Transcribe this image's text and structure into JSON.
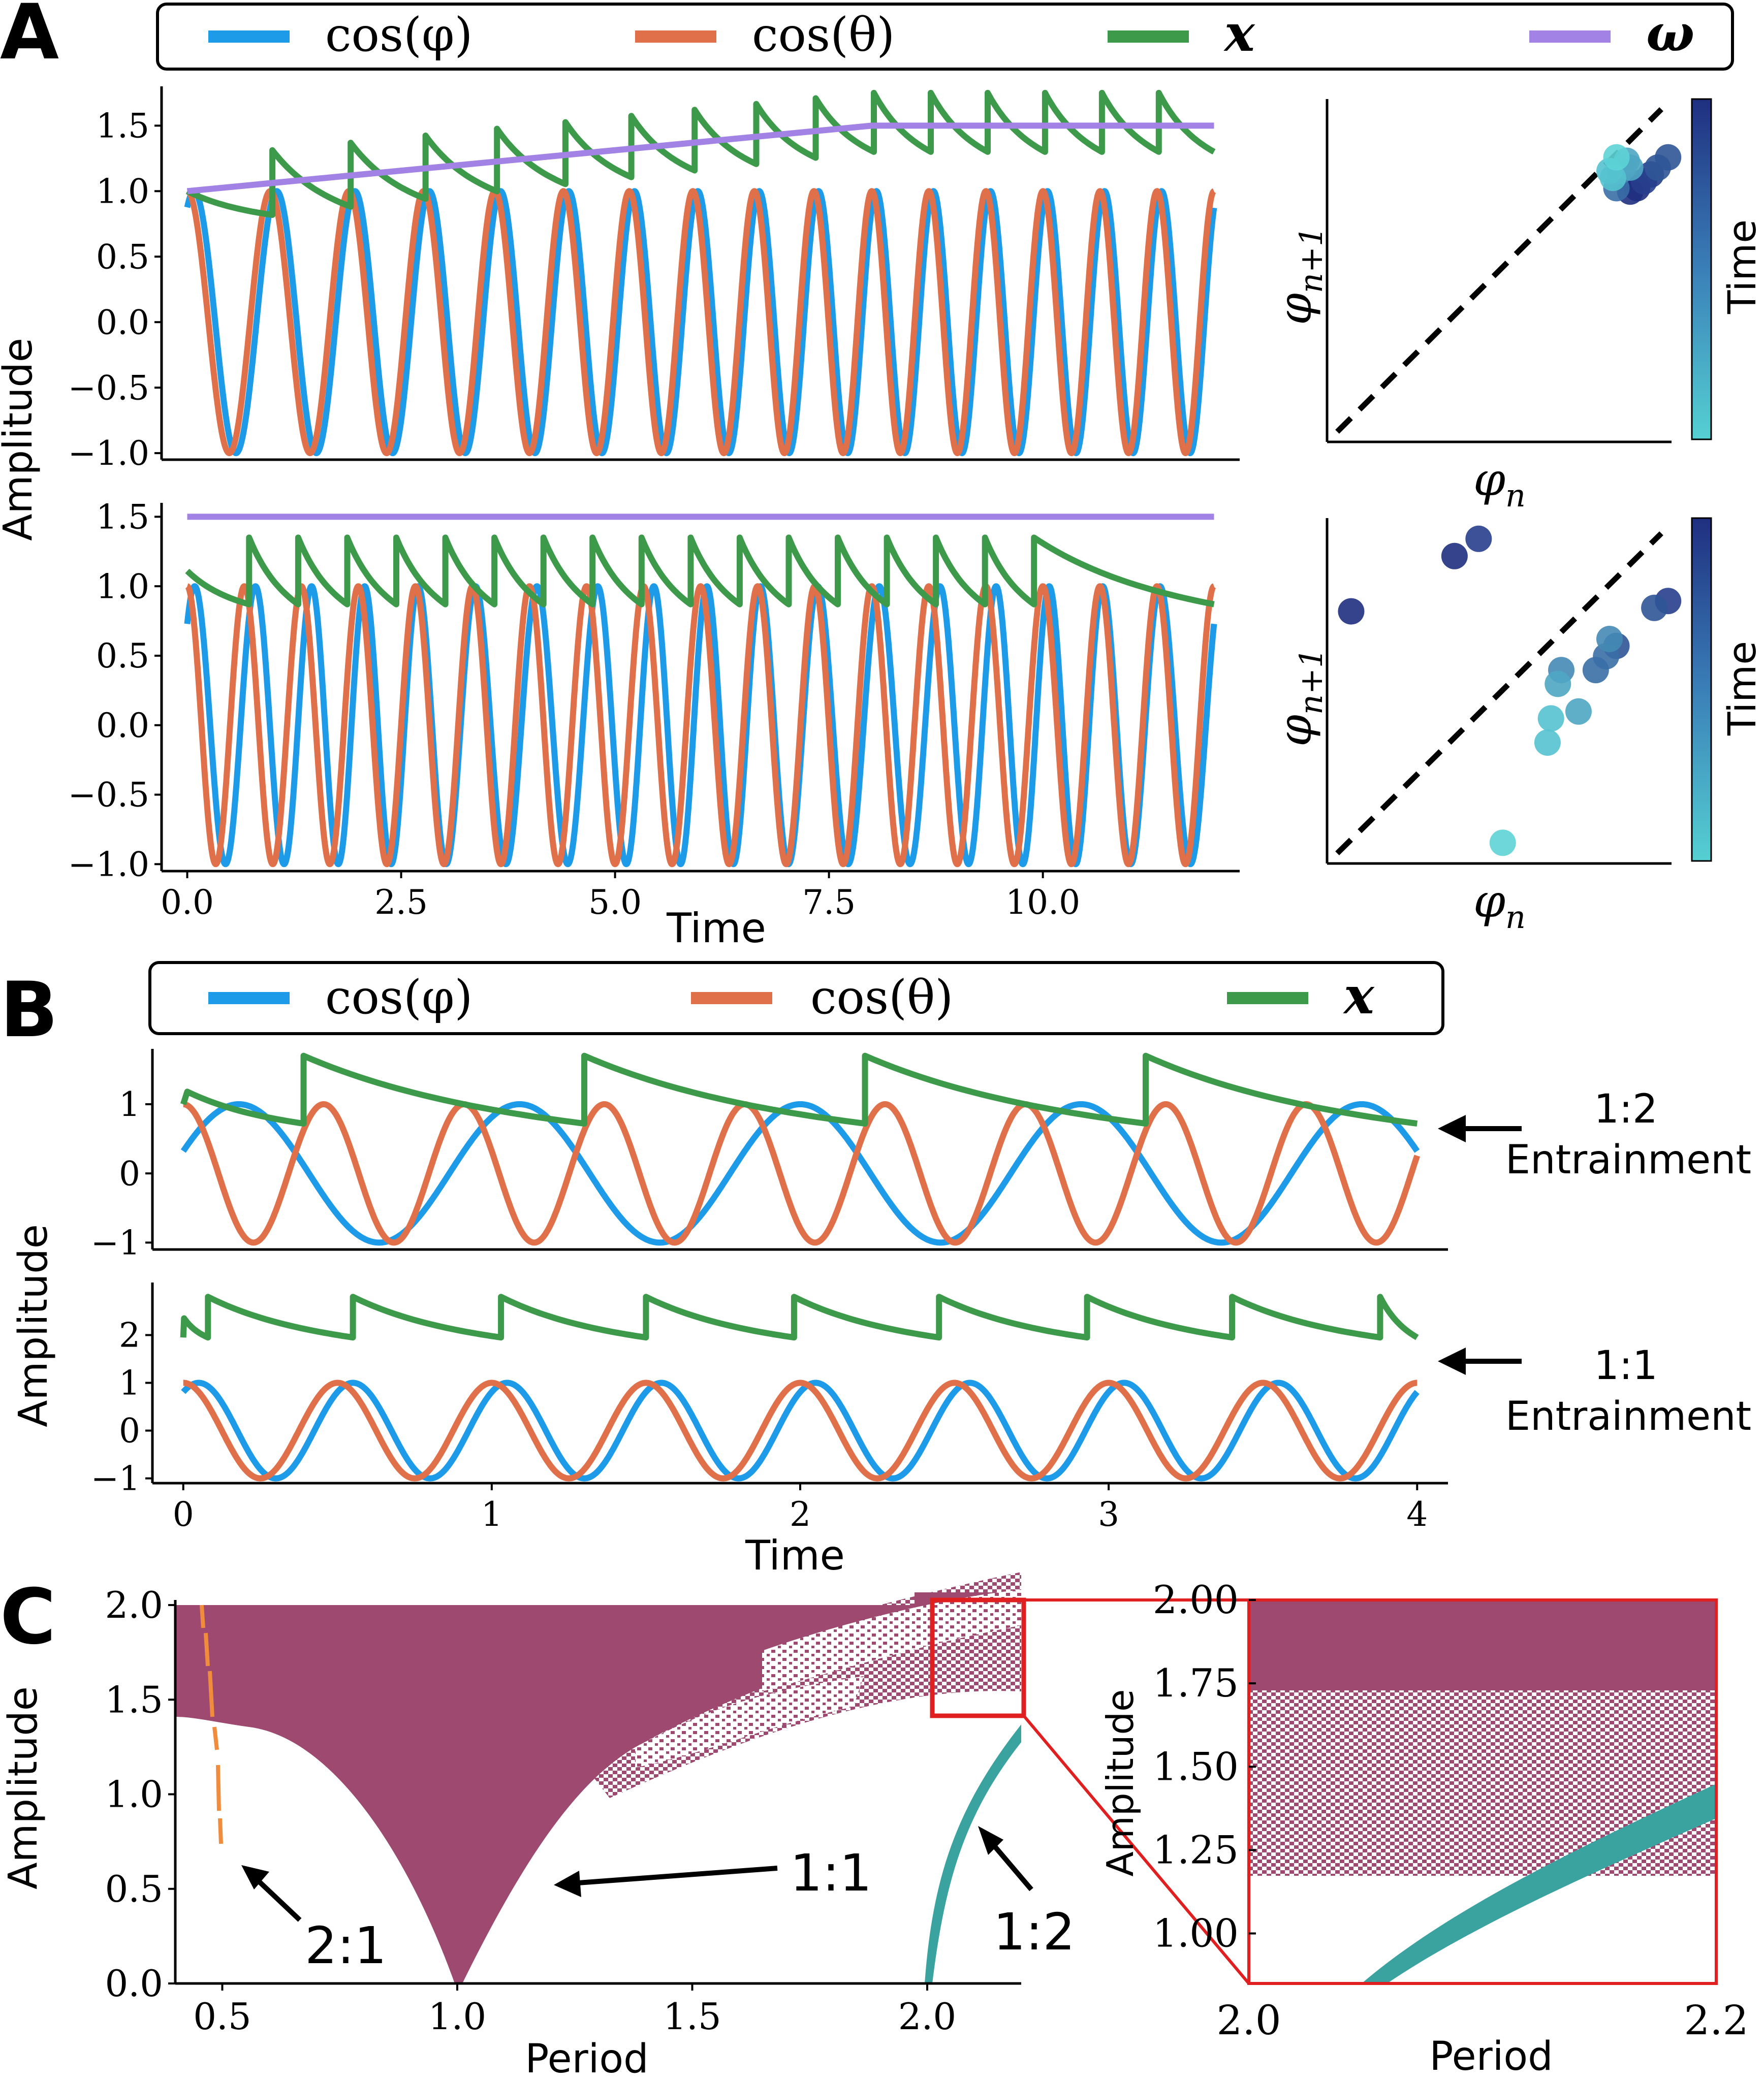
{
  "panels": {
    "A": {
      "label": "A",
      "legend": [
        "cos(φ)",
        "cos(θ)",
        "x",
        "ω"
      ],
      "ylabel": "Amplitude",
      "xlabel": "Time",
      "map_xlabel": "φ",
      "map_xlabel_sub": "n",
      "map_ylabel": "φ",
      "map_ylabel_sub": "n+1",
      "colorbar_label": "Time"
    },
    "B": {
      "label": "B",
      "legend": [
        "cos(φ)",
        "cos(θ)",
        "x"
      ],
      "ylabel": "Amplitude",
      "xlabel": "Time",
      "annotations": [
        {
          "ratio": "1:2",
          "text": "Entrainment"
        },
        {
          "ratio": "1:1",
          "text": "Entrainment"
        }
      ]
    },
    "C": {
      "label": "C",
      "ylabel": "Amplitude",
      "xlabel": "Period",
      "inset_ylabel": "Amplitude",
      "inset_xlabel": "Period",
      "annotations": [
        "2:1",
        "1:1",
        "1:2"
      ]
    }
  },
  "colors": {
    "cos_phi": "#1e9be8",
    "cos_theta": "#e0704a",
    "x": "#3d9a4a",
    "omega": "#a282e4",
    "region_1_1": "#9e4a70",
    "region_1_2": "#3aa39f",
    "region_2_1": "#f08c3c",
    "zoom_box": "#e02020"
  },
  "chart_data": [
    {
      "id": "A-top",
      "type": "line",
      "xlabel": "Time",
      "ylabel": "Amplitude",
      "xlim": [
        -0.3,
        12.3
      ],
      "ylim": [
        -1.05,
        1.8
      ],
      "xticks": [],
      "yticks": [
        "1.5",
        "1.0",
        "0.5",
        "0.0",
        "−0.5",
        "−1.0"
      ],
      "series": [
        {
          "name": "cos(φ)",
          "description": "cosine with frequency ramping from 1.0 to 1.5, slight phase lag",
          "f_start": 1.0,
          "f_end": 1.5,
          "t_ramp_end": 8.0,
          "lag": 0.08
        },
        {
          "name": "cos(θ)",
          "f_start": 1.0,
          "f_end": 1.5,
          "t_ramp_end": 8.0
        },
        {
          "name": "x",
          "description": "sawtooth decaying from ~1.25 to ~0.75, jumping at each cycle",
          "peaks": [
            1.25,
            1.25,
            1.3,
            1.35,
            1.4,
            1.45,
            1.5,
            1.55,
            1.6,
            1.65,
            1.7,
            1.7,
            1.75,
            1.75,
            1.75,
            1.75,
            1.75,
            1.75
          ],
          "troughs": [
            0.75,
            0.8,
            0.85,
            0.9,
            0.95,
            1.0,
            1.05,
            1.1,
            1.15,
            1.2,
            1.25,
            1.3,
            1.3,
            1.3,
            1.3,
            1.3,
            1.3,
            1.3
          ]
        },
        {
          "name": "ω",
          "x": [
            0,
            8,
            12
          ],
          "y": [
            1.0,
            1.5,
            1.5
          ]
        }
      ]
    },
    {
      "id": "A-bottom",
      "type": "line",
      "xlabel": "Time",
      "ylabel": "Amplitude",
      "xlim": [
        -0.3,
        12.3
      ],
      "ylim": [
        -1.05,
        1.6
      ],
      "xticks": [
        "0.0",
        "2.5",
        "5.0",
        "7.5",
        "10.0"
      ],
      "xtick_values": [
        0,
        2.5,
        5,
        7.5,
        10
      ],
      "yticks": [
        "1.5",
        "1.0",
        "0.5",
        "0.0",
        "−0.5",
        "−1.0"
      ],
      "series": [
        {
          "name": "cos(φ)",
          "frequency": 1.25
        },
        {
          "name": "cos(θ)",
          "frequency": 1.5
        },
        {
          "name": "x",
          "description": "sawtooth between ~0.85 and ~1.4"
        },
        {
          "name": "ω",
          "x": [
            0,
            12
          ],
          "y": [
            1.5,
            1.5
          ]
        }
      ]
    },
    {
      "id": "A-map-top",
      "type": "scatter",
      "xlabel": "φ_n",
      "ylabel": "φ_n+1",
      "diagonal": "dashed identity line",
      "points": [
        [
          0.88,
          0.73
        ],
        [
          0.9,
          0.74
        ],
        [
          0.92,
          0.76
        ],
        [
          0.94,
          0.78
        ],
        [
          0.96,
          0.8
        ],
        [
          0.99,
          0.83
        ],
        [
          0.84,
          0.74
        ],
        [
          0.85,
          0.79
        ],
        [
          0.86,
          0.8
        ],
        [
          0.87,
          0.82
        ],
        [
          0.88,
          0.8
        ],
        [
          0.83,
          0.77
        ],
        [
          0.82,
          0.79
        ],
        [
          0.84,
          0.83
        ]
      ],
      "colorbar": "Time"
    },
    {
      "id": "A-map-bottom",
      "type": "scatter",
      "xlabel": "φ_n",
      "ylabel": "φ_n+1",
      "diagonal": "dashed identity line",
      "points": [
        [
          0.07,
          0.73
        ],
        [
          0.37,
          0.89
        ],
        [
          0.44,
          0.94
        ],
        [
          0.99,
          0.76
        ],
        [
          0.95,
          0.74
        ],
        [
          0.84,
          0.63
        ],
        [
          0.81,
          0.6
        ],
        [
          0.78,
          0.56
        ],
        [
          0.82,
          0.65
        ],
        [
          0.68,
          0.56
        ],
        [
          0.67,
          0.52
        ],
        [
          0.73,
          0.44
        ],
        [
          0.65,
          0.42
        ],
        [
          0.64,
          0.35
        ],
        [
          0.51,
          0.06
        ]
      ],
      "colorbar": "Time"
    },
    {
      "id": "B-top",
      "type": "line",
      "xlabel": "Time",
      "ylabel": "Amplitude",
      "xlim": [
        -0.1,
        4.1
      ],
      "ylim": [
        -1.1,
        1.8
      ],
      "yticks": [
        "1",
        "0",
        "−1"
      ],
      "series": [
        {
          "name": "cos(φ)",
          "period": 0.91,
          "phase_offset": 0.18
        },
        {
          "name": "cos(θ)",
          "period": 0.455
        },
        {
          "name": "x",
          "description": "sawtooth jumping to ~1.7 every ~0.91 then decaying to ~0.7"
        }
      ],
      "annotation": "1:2 Entrainment"
    },
    {
      "id": "B-bottom",
      "type": "line",
      "xlabel": "Time",
      "ylabel": "Amplitude",
      "xlim": [
        -0.1,
        4.1
      ],
      "ylim": [
        -1.1,
        3.1
      ],
      "xticks": [
        "0",
        "1",
        "2",
        "3",
        "4"
      ],
      "xtick_values": [
        0,
        1,
        2,
        3,
        4
      ],
      "yticks": [
        "2",
        "1",
        "0",
        "−1"
      ],
      "series": [
        {
          "name": "cos(φ)",
          "period": 0.5,
          "lag": 0.05
        },
        {
          "name": "cos(θ)",
          "period": 0.5
        },
        {
          "name": "x",
          "description": "sawtooth jumping to ~2.8 every ~0.5 then decaying to ~1.9"
        }
      ],
      "annotation": "1:1 Entrainment"
    },
    {
      "id": "C",
      "type": "heatmap",
      "xlabel": "Period",
      "ylabel": "Amplitude",
      "xlim": [
        0.4,
        2.2
      ],
      "ylim": [
        0.0,
        2.0
      ],
      "xticks": [
        "0.5",
        "1.0",
        "1.5",
        "2.0"
      ],
      "xtick_values": [
        0.5,
        1.0,
        1.5,
        2.0
      ],
      "yticks": [
        "0.0",
        "0.5",
        "1.0",
        "1.5",
        "2.0"
      ],
      "ytick_values": [
        0,
        0.5,
        1.0,
        1.5,
        2.0
      ],
      "regions": [
        {
          "name": "1:1",
          "description": "V-shaped Arnold tongue with tip at period 1.0, amplitude 0; solid fill above ~1.85 becomes speckled toward right"
        },
        {
          "name": "1:2",
          "description": "narrow tongue starting at period 2.0, amplitude 0 rising to ~1.4 at period 2.2"
        },
        {
          "name": "2:1",
          "description": "thin dashed line near period 0.45–0.48, amplitude 0.7–2.0"
        }
      ],
      "zoom_box": {
        "x": [
          2.0,
          2.2
        ],
        "y": [
          0.9,
          2.0
        ]
      }
    },
    {
      "id": "C-inset",
      "type": "heatmap",
      "xlabel": "Period",
      "ylabel": "Amplitude",
      "xlim": [
        2.0,
        2.2
      ],
      "ylim": [
        0.85,
        2.0
      ],
      "xticks": [
        "2.0",
        "2.2"
      ],
      "xtick_values": [
        2.0,
        2.2
      ],
      "yticks": [
        "1.00",
        "1.25",
        "1.50",
        "1.75",
        "2.00"
      ],
      "ytick_values": [
        1.0,
        1.25,
        1.5,
        1.75,
        2.0
      ]
    }
  ]
}
